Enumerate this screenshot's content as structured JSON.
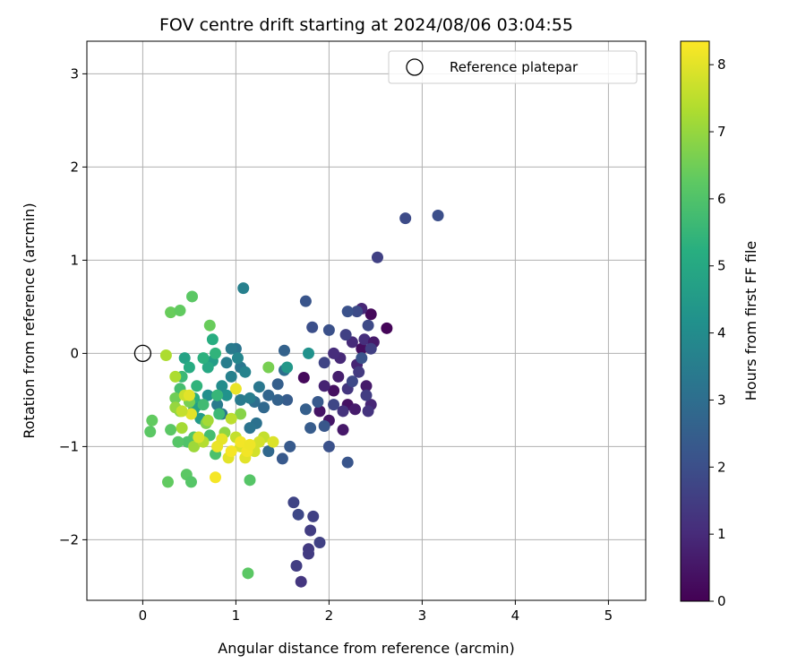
{
  "chart_data": {
    "type": "scatter",
    "title": "FOV centre drift starting at 2024/08/06 03:04:55",
    "xlabel": "Angular distance from reference (arcmin)",
    "ylabel": "Rotation from reference (arcmin)",
    "xlim": [
      -0.6,
      5.4
    ],
    "ylim": [
      -2.65,
      3.35
    ],
    "xticks": [
      0,
      1,
      2,
      3,
      4,
      5
    ],
    "xtick_labels": [
      "0",
      "1",
      "2",
      "3",
      "4",
      "5"
    ],
    "yticks": [
      -2,
      -1,
      0,
      1,
      2,
      3
    ],
    "ytick_labels": [
      "−2",
      "−1",
      "0",
      "1",
      "2",
      "3"
    ],
    "grid": true,
    "legend": {
      "placement": "top-right",
      "entries": [
        "Reference platepar"
      ]
    },
    "reference_point": {
      "x": 0,
      "y": 0
    },
    "colorbar": {
      "label": "Hours from first FF file",
      "range": [
        0,
        8.35
      ],
      "ticks": [
        0,
        1,
        2,
        3,
        4,
        5,
        6,
        7,
        8
      ],
      "tick_labels": [
        "0",
        "1",
        "2",
        "3",
        "4",
        "5",
        "6",
        "7",
        "8"
      ],
      "colormap": "viridis"
    },
    "points": [
      [
        2.62,
        0.27,
        0.1
      ],
      [
        2.45,
        0.42,
        0.2
      ],
      [
        2.35,
        0.05,
        0.3
      ],
      [
        2.05,
        -0.4,
        0.35
      ],
      [
        2.2,
        -0.55,
        0.4
      ],
      [
        1.9,
        -0.62,
        0.45
      ],
      [
        2.0,
        -0.72,
        0.5
      ],
      [
        2.15,
        -0.82,
        0.55
      ],
      [
        2.4,
        -0.35,
        0.6
      ],
      [
        2.28,
        -0.6,
        0.65
      ],
      [
        2.1,
        -0.25,
        0.7
      ],
      [
        1.73,
        -0.26,
        0.2
      ],
      [
        1.95,
        -0.35,
        0.8
      ],
      [
        2.3,
        -0.12,
        0.85
      ],
      [
        2.45,
        -0.55,
        0.9
      ],
      [
        2.12,
        -0.05,
        0.95
      ],
      [
        2.25,
        0.12,
        1.0
      ],
      [
        2.05,
        0.0,
        1.05
      ],
      [
        2.38,
        0.15,
        1.1
      ],
      [
        2.15,
        -0.62,
        1.2
      ],
      [
        2.42,
        -0.62,
        1.25
      ],
      [
        2.2,
        -0.38,
        1.3
      ],
      [
        2.35,
        0.48,
        0.9
      ],
      [
        2.48,
        0.12,
        0.6
      ],
      [
        2.32,
        -0.2,
        1.4
      ],
      [
        2.4,
        -0.45,
        1.5
      ],
      [
        2.45,
        0.05,
        1.55
      ],
      [
        2.18,
        0.2,
        1.6
      ],
      [
        1.95,
        -0.1,
        1.7
      ],
      [
        2.05,
        -0.55,
        1.75
      ],
      [
        2.25,
        -0.3,
        1.8
      ],
      [
        2.42,
        0.3,
        1.85
      ],
      [
        2.3,
        0.45,
        1.9
      ],
      [
        2.52,
        1.03,
        1.6
      ],
      [
        2.82,
        1.45,
        1.9
      ],
      [
        3.17,
        1.48,
        2.0
      ],
      [
        2.0,
        0.25,
        2.05
      ],
      [
        2.2,
        0.45,
        2.1
      ],
      [
        2.35,
        -0.05,
        2.15
      ],
      [
        1.82,
        0.28,
        2.0
      ],
      [
        1.75,
        0.56,
        2.2
      ],
      [
        1.88,
        -0.52,
        2.3
      ],
      [
        1.95,
        -0.78,
        2.25
      ],
      [
        2.2,
        -1.17,
        2.2
      ],
      [
        2.0,
        -1.0,
        2.1
      ],
      [
        1.8,
        -0.8,
        2.4
      ],
      [
        1.75,
        -0.6,
        2.5
      ],
      [
        1.5,
        -1.13,
        2.3
      ],
      [
        1.58,
        -1.0,
        2.35
      ],
      [
        1.55,
        -0.5,
        2.4
      ],
      [
        1.62,
        -1.6,
        1.7
      ],
      [
        1.67,
        -1.73,
        1.8
      ],
      [
        1.83,
        -1.75,
        1.6
      ],
      [
        1.8,
        -1.9,
        1.5
      ],
      [
        1.9,
        -2.03,
        1.6
      ],
      [
        1.78,
        -2.1,
        1.4
      ],
      [
        1.78,
        -2.15,
        1.45
      ],
      [
        1.65,
        -2.28,
        1.5
      ],
      [
        1.7,
        -2.45,
        1.3
      ],
      [
        1.45,
        -0.5,
        2.6
      ],
      [
        1.35,
        -0.45,
        2.7
      ],
      [
        1.45,
        -0.33,
        2.5
      ],
      [
        1.52,
        0.03,
        2.6
      ],
      [
        1.52,
        -0.18,
        3.0
      ],
      [
        1.3,
        -0.58,
        2.8
      ],
      [
        1.22,
        -0.75,
        3.1
      ],
      [
        1.15,
        -0.8,
        3.2
      ],
      [
        1.35,
        -1.05,
        2.8
      ],
      [
        1.2,
        -0.52,
        3.0
      ],
      [
        1.25,
        -0.36,
        3.3
      ],
      [
        1.0,
        0.05,
        3.2
      ],
      [
        1.05,
        -0.15,
        3.3
      ],
      [
        0.95,
        0.05,
        3.4
      ],
      [
        0.9,
        -0.1,
        3.5
      ],
      [
        0.8,
        -0.55,
        3.4
      ],
      [
        0.85,
        -0.65,
        3.3
      ],
      [
        1.08,
        0.7,
        3.6
      ],
      [
        1.1,
        -0.2,
        3.7
      ],
      [
        0.95,
        -0.25,
        3.6
      ],
      [
        1.05,
        -0.5,
        3.4
      ],
      [
        1.15,
        -0.48,
        3.5
      ],
      [
        1.02,
        -0.05,
        3.8
      ],
      [
        1.78,
        0.0,
        4.2
      ],
      [
        1.55,
        -0.15,
        4.4
      ],
      [
        0.85,
        -0.35,
        4.0
      ],
      [
        0.7,
        -0.45,
        4.1
      ],
      [
        0.75,
        -0.08,
        4.6
      ],
      [
        0.9,
        -0.45,
        4.2
      ],
      [
        0.6,
        -0.55,
        4.3
      ],
      [
        0.62,
        -0.7,
        4.5
      ],
      [
        0.55,
        -0.6,
        4.8
      ],
      [
        0.45,
        -0.05,
        4.8
      ],
      [
        0.7,
        -0.15,
        5.0
      ],
      [
        0.75,
        0.15,
        5.2
      ],
      [
        0.78,
        0.0,
        5.4
      ],
      [
        0.8,
        -0.45,
        5.5
      ],
      [
        0.65,
        -0.05,
        5.3
      ],
      [
        0.5,
        -0.15,
        5.1
      ],
      [
        0.42,
        -0.25,
        5.6
      ],
      [
        0.58,
        -0.35,
        5.4
      ],
      [
        0.55,
        -0.48,
        5.2
      ],
      [
        0.4,
        -0.38,
        5.8
      ],
      [
        0.65,
        -0.55,
        5.7
      ],
      [
        0.82,
        -0.65,
        5.6
      ],
      [
        0.72,
        -0.88,
        5.8
      ],
      [
        0.78,
        -1.08,
        5.9
      ],
      [
        0.55,
        -0.9,
        6.1
      ],
      [
        0.48,
        -0.95,
        6.0
      ],
      [
        0.38,
        -0.95,
        6.1
      ],
      [
        0.3,
        -0.82,
        6.2
      ],
      [
        0.1,
        -0.72,
        6.3
      ],
      [
        0.08,
        -0.84,
        6.2
      ],
      [
        0.27,
        -1.38,
        6.3
      ],
      [
        0.47,
        -1.3,
        6.2
      ],
      [
        0.52,
        -1.38,
        6.1
      ],
      [
        1.15,
        -1.36,
        6.1
      ],
      [
        1.13,
        -2.36,
        6.2
      ],
      [
        0.3,
        0.44,
        6.4
      ],
      [
        0.4,
        0.46,
        6.3
      ],
      [
        0.53,
        0.61,
        6.2
      ],
      [
        0.72,
        0.3,
        6.4
      ],
      [
        0.35,
        -0.48,
        6.5
      ],
      [
        0.5,
        -0.52,
        6.6
      ],
      [
        0.4,
        -0.62,
        6.8
      ],
      [
        0.68,
        -0.75,
        6.7
      ],
      [
        0.88,
        -0.85,
        6.9
      ],
      [
        1.35,
        -0.15,
        6.6
      ],
      [
        1.05,
        -0.65,
        6.8
      ],
      [
        0.35,
        -0.58,
        7.0
      ],
      [
        0.55,
        -1.0,
        7.1
      ],
      [
        0.42,
        -0.8,
        7.2
      ],
      [
        0.25,
        -0.02,
        7.3
      ],
      [
        0.35,
        -0.25,
        7.3
      ],
      [
        0.65,
        -0.95,
        7.4
      ],
      [
        0.95,
        -0.7,
        7.5
      ],
      [
        1.0,
        -0.9,
        7.6
      ],
      [
        1.3,
        -0.9,
        7.6
      ],
      [
        0.45,
        -0.45,
        7.7
      ],
      [
        1.2,
        -1.05,
        7.8
      ],
      [
        1.25,
        -0.95,
        7.8
      ],
      [
        1.4,
        -0.95,
        7.9
      ],
      [
        1.05,
        -1.0,
        7.9
      ],
      [
        1.1,
        -1.12,
        8.0
      ],
      [
        0.92,
        -1.12,
        8.0
      ],
      [
        0.8,
        -1.0,
        8.1
      ],
      [
        0.85,
        -0.92,
        8.05
      ],
      [
        1.0,
        -0.38,
        8.1
      ],
      [
        1.12,
        -1.05,
        8.2
      ],
      [
        1.05,
        -0.95,
        8.2
      ],
      [
        0.78,
        -1.33,
        8.25
      ],
      [
        0.95,
        -1.05,
        8.25
      ],
      [
        0.5,
        -0.45,
        8.0
      ],
      [
        0.6,
        -0.9,
        7.9
      ],
      [
        0.52,
        -0.65,
        8.0
      ],
      [
        1.15,
        -0.98,
        8.15
      ],
      [
        0.42,
        -0.62,
        7.6
      ],
      [
        0.7,
        -0.72,
        7.2
      ]
    ]
  }
}
